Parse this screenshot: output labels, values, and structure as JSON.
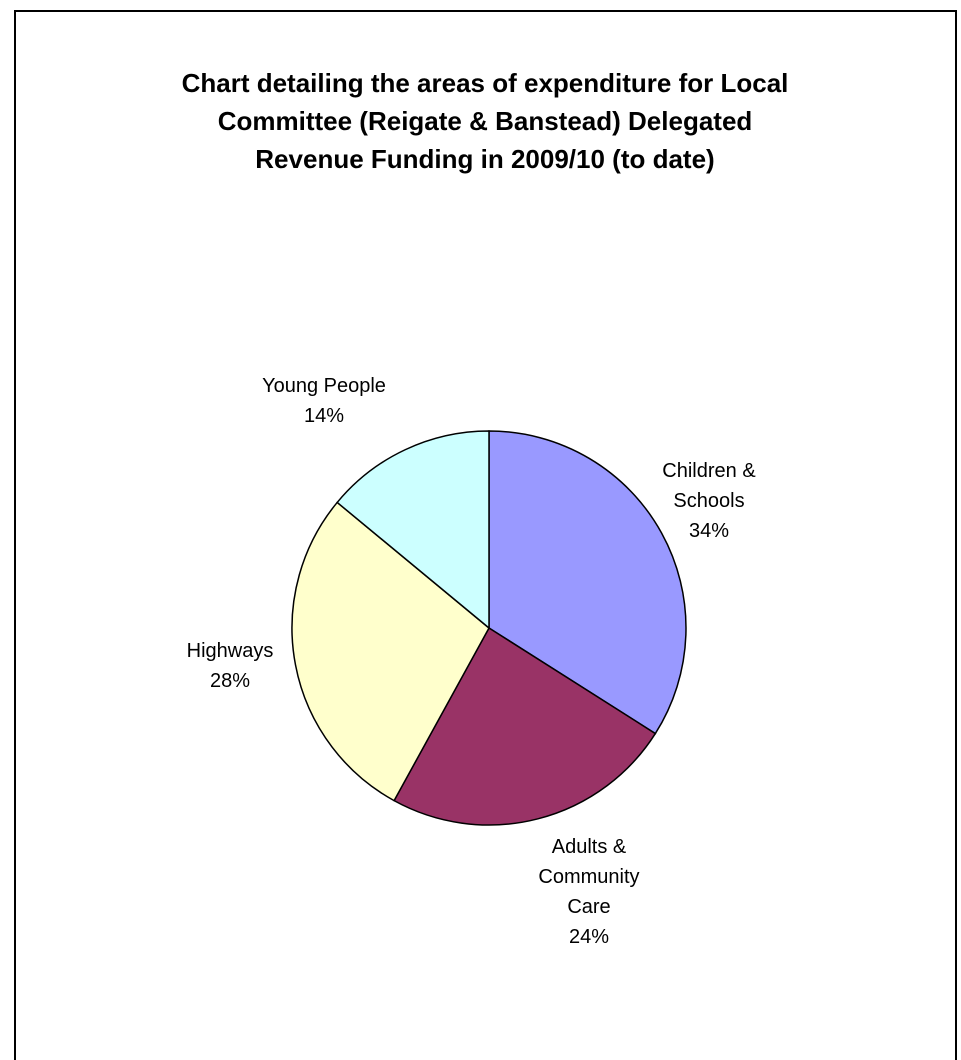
{
  "chart_data": {
    "type": "pie",
    "title_lines": [
      "Chart detailing the areas of expenditure for Local",
      "Committee (Reigate & Banstead) Delegated",
      "Revenue Funding in 2009/10 (to date)"
    ],
    "slices": [
      {
        "name_lines": [
          "Children &",
          "Schools"
        ],
        "value": 34,
        "label": "34%",
        "color": "#9999FF"
      },
      {
        "name_lines": [
          "Adults &",
          "Community",
          "Care"
        ],
        "value": 24,
        "label": "24%",
        "color": "#993366"
      },
      {
        "name_lines": [
          "Highways"
        ],
        "value": 28,
        "label": "28%",
        "color": "#FFFFCC"
      },
      {
        "name_lines": [
          "Young People"
        ],
        "value": 14,
        "label": "14%",
        "color": "#CCFFFF"
      }
    ],
    "start_angle_deg": 0,
    "direction": "clockwise",
    "legend": "none"
  }
}
